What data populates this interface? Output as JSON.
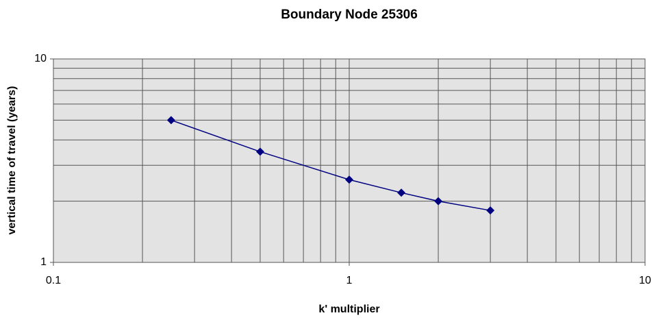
{
  "chart_data": {
    "type": "line",
    "title": "Boundary Node 25306",
    "xlabel": "k' multiplier",
    "ylabel": "vertical time of travel (years)",
    "x": [
      0.25,
      0.5,
      1,
      1.5,
      2,
      3
    ],
    "series": [
      {
        "name": "Boundary Node 25306",
        "color": "#000080",
        "values": [
          5,
          3.5,
          2.55,
          2.2,
          2.0,
          1.8
        ]
      }
    ],
    "xlim": [
      0.1,
      10
    ],
    "ylim": [
      1,
      10
    ],
    "xticks": [
      0.1,
      1,
      10
    ],
    "yticks": [
      1,
      10
    ],
    "xminor": [
      0.2,
      0.3,
      0.4,
      0.5,
      0.6,
      0.7,
      0.8,
      0.9,
      2,
      3,
      4,
      5,
      6,
      7,
      8,
      9
    ],
    "yminor": [
      2,
      3,
      4,
      5,
      6,
      7,
      8,
      9
    ],
    "xscale": "log",
    "yscale": "log",
    "grid": true,
    "legend": false
  }
}
